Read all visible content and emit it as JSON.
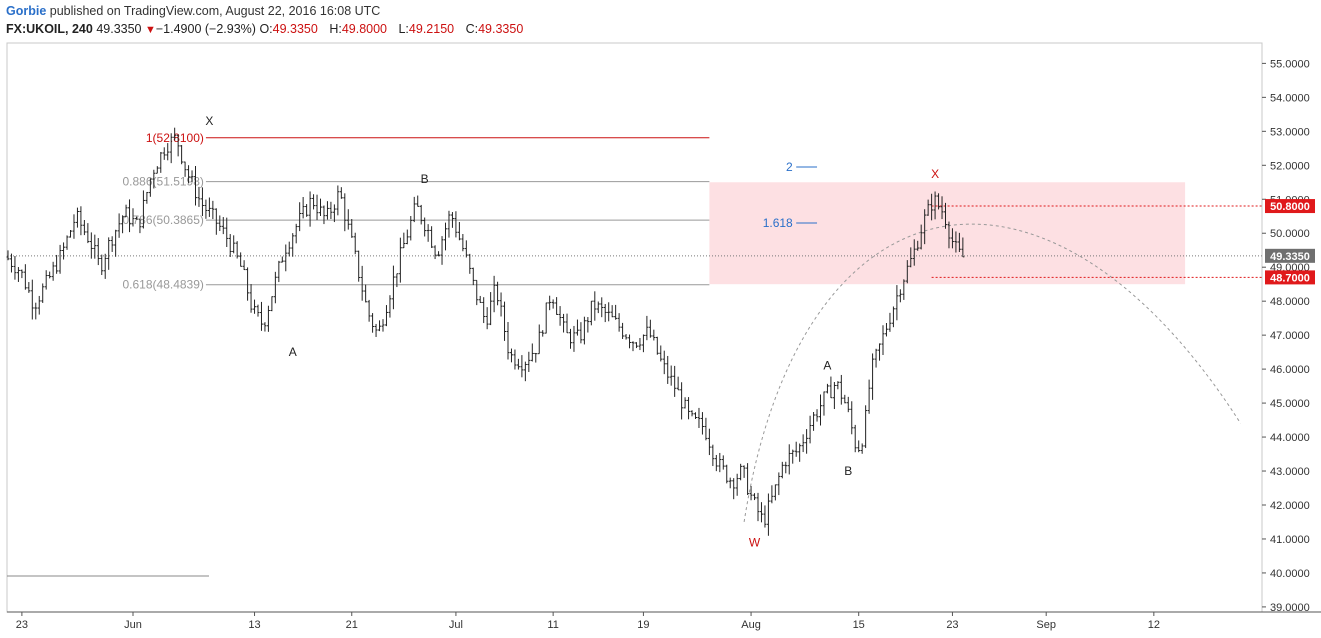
{
  "header": {
    "author": "Gorbie",
    "published_text": "published on TradingView.com, August 22, 2016 16:08 UTC",
    "symbol": "FX:UKOIL, 240",
    "last": "49.3350",
    "change_arrow": "▼",
    "change": "−1.4900 (−2.93%)",
    "o_label": "O:",
    "o_value": "49.3350",
    "h_label": "H:",
    "h_value": "49.8000",
    "l_label": "L:",
    "l_value": "49.2150",
    "c_label": "C:",
    "c_value": "49.3350"
  },
  "chart_data": {
    "type": "ohlc",
    "ylim": [
      38.85,
      55.6
    ],
    "y_ticks": [
      "39.0000",
      "40.0000",
      "41.0000",
      "42.0000",
      "43.0000",
      "44.0000",
      "45.0000",
      "46.0000",
      "47.0000",
      "48.0000",
      "49.0000",
      "50.0000",
      "51.0000",
      "52.0000",
      "53.0000",
      "54.0000",
      "55.0000"
    ],
    "x_ticks": [
      "23",
      "Jun",
      "13",
      "21",
      "Jul",
      "11",
      "19",
      "Aug",
      "15",
      "23",
      "Sep",
      "12"
    ],
    "price_path": [
      [
        0,
        49.3
      ],
      [
        4,
        48.9
      ],
      [
        8,
        47.9
      ],
      [
        12,
        48.6
      ],
      [
        16,
        49.4
      ],
      [
        20,
        50.5
      ],
      [
        24,
        49.8
      ],
      [
        27,
        49.0
      ],
      [
        30,
        49.8
      ],
      [
        34,
        50.6
      ],
      [
        38,
        50.2
      ],
      [
        42,
        51.8
      ],
      [
        46,
        52.6
      ],
      [
        49,
        52.81
      ],
      [
        52,
        51.8
      ],
      [
        56,
        50.9
      ],
      [
        60,
        50.4
      ],
      [
        64,
        49.8
      ],
      [
        68,
        48.9
      ],
      [
        71,
        47.7
      ],
      [
        74,
        47.3
      ],
      [
        77,
        48.4
      ],
      [
        80,
        49.5
      ],
      [
        84,
        50.3
      ],
      [
        88,
        51.0
      ],
      [
        92,
        50.4
      ],
      [
        96,
        51.2
      ],
      [
        100,
        49.5
      ],
      [
        104,
        47.7
      ],
      [
        107,
        47.0
      ],
      [
        110,
        48.1
      ],
      [
        114,
        49.5
      ],
      [
        118,
        50.8
      ],
      [
        121,
        50.2
      ],
      [
        124,
        49.4
      ],
      [
        128,
        50.6
      ],
      [
        132,
        49.4
      ],
      [
        135,
        48.3
      ],
      [
        138,
        47.4
      ],
      [
        141,
        48.4
      ],
      [
        145,
        46.4
      ],
      [
        149,
        46.2
      ],
      [
        153,
        46.7
      ],
      [
        157,
        48.3
      ],
      [
        161,
        47.0
      ],
      [
        165,
        46.9
      ],
      [
        169,
        47.9
      ],
      [
        173,
        47.6
      ],
      [
        177,
        47.2
      ],
      [
        181,
        46.8
      ],
      [
        185,
        47.1
      ],
      [
        189,
        46.1
      ],
      [
        193,
        45.4
      ],
      [
        197,
        44.5
      ],
      [
        201,
        44.3
      ],
      [
        205,
        43.2
      ],
      [
        209,
        42.7
      ],
      [
        212,
        43.0
      ],
      [
        215,
        42.1
      ],
      [
        218,
        41.5
      ],
      [
        221,
        42.3
      ],
      [
        224,
        43.3
      ],
      [
        228,
        43.6
      ],
      [
        232,
        44.5
      ],
      [
        236,
        45.2
      ],
      [
        239,
        45.6
      ],
      [
        242,
        44.9
      ],
      [
        245,
        43.6
      ],
      [
        247,
        44.1
      ],
      [
        249,
        45.9
      ],
      [
        252,
        46.8
      ],
      [
        255,
        47.7
      ],
      [
        258,
        48.6
      ],
      [
        261,
        49.3
      ],
      [
        264,
        50.3
      ],
      [
        267,
        51.0
      ],
      [
        270,
        50.6
      ],
      [
        273,
        49.6
      ],
      [
        275,
        49.3
      ]
    ],
    "x_range": [
      0,
      360
    ],
    "fib_lines": [
      {
        "label": "1(52.8100)",
        "value": 52.81
      },
      {
        "label": "0.886(51.5198)",
        "value": 51.5198
      },
      {
        "label": "0.786(50.3865)",
        "value": 50.3865
      },
      {
        "label": "0.618(48.4839)",
        "value": 48.4839
      }
    ],
    "extension_labels": [
      {
        "label": "2",
        "value": 51.95
      },
      {
        "label": "1.618",
        "value": 50.3
      }
    ],
    "wave_labels": [
      {
        "label": "X",
        "x": 58,
        "value": 53.3,
        "color": "#222222"
      },
      {
        "label": "A",
        "x": 82,
        "value": 46.5,
        "color": "#222222"
      },
      {
        "label": "B",
        "x": 120,
        "value": 51.6,
        "color": "#222222"
      },
      {
        "label": "W",
        "x": 215,
        "value": 40.9,
        "color": "#cc1111"
      },
      {
        "label": "A",
        "x": 236,
        "value": 46.1,
        "color": "#222222"
      },
      {
        "label": "B",
        "x": 242,
        "value": 43.0,
        "color": "#222222"
      },
      {
        "label": "X",
        "x": 267,
        "value": 51.75,
        "color": "#cc1111"
      }
    ],
    "zone": {
      "x_from": 202,
      "x_to": 339,
      "low": 48.5,
      "high": 51.5
    },
    "price_boxes": [
      {
        "label": "50.8000",
        "value": 50.8,
        "style": "red"
      },
      {
        "label": "49.3350",
        "value": 49.335,
        "style": "gray"
      },
      {
        "label": "48.7000",
        "value": 48.7,
        "style": "red"
      }
    ],
    "current_price": 49.335,
    "colors": {
      "bar": "#222222",
      "fib": "#999999",
      "top_fib": "#cc1111",
      "zone": "#fde0e3",
      "extension": "#2a6fc9",
      "red_box": "#e0191b",
      "gray_box": "#6f6f6f"
    }
  }
}
